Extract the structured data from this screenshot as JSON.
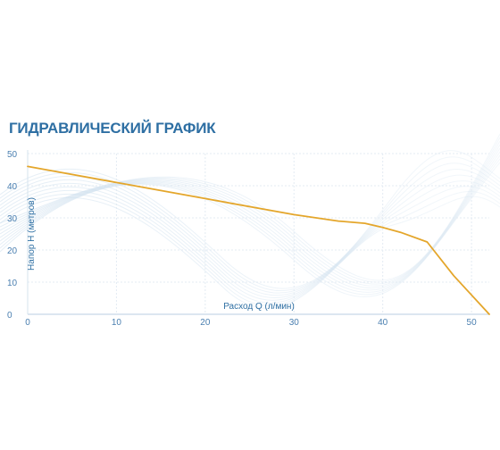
{
  "chart_data": {
    "type": "line",
    "title": "ГИДРАВЛИЧЕСКИЙ ГРАФИК",
    "xlabel": "Расход Q (л/мин)",
    "ylabel": "Напор Н (метров)",
    "xlim": [
      0,
      52
    ],
    "ylim": [
      0,
      50
    ],
    "xticks": [
      "0",
      "10",
      "20",
      "30",
      "40",
      "50"
    ],
    "yticks": [
      "0",
      "10",
      "20",
      "30",
      "40",
      "50"
    ],
    "grid": true,
    "series": [
      {
        "color": "#e4a62b",
        "x": [
          0,
          10,
          20,
          30,
          35,
          38,
          40,
          42,
          45,
          48,
          52
        ],
        "y": [
          46,
          41,
          36,
          31,
          29,
          28.3,
          27,
          25.5,
          22.5,
          12,
          0
        ]
      }
    ]
  }
}
